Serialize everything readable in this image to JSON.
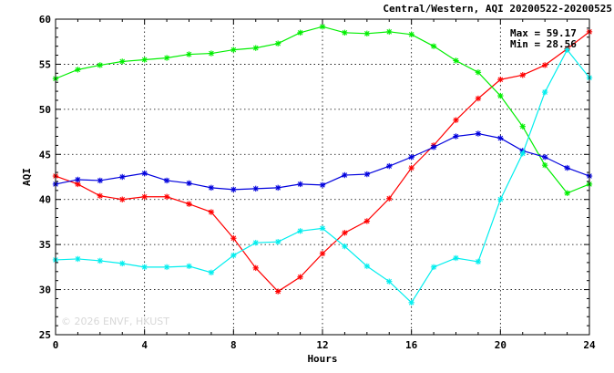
{
  "chart_data": {
    "type": "line",
    "title": "Central/Western, AQI 20200522-20200525",
    "xlabel": "Hours",
    "ylabel": "AQI",
    "xlim": [
      0,
      24
    ],
    "ylim": [
      25,
      60
    ],
    "xticks": [
      0,
      4,
      8,
      12,
      16,
      20,
      24
    ],
    "yticks": [
      25,
      30,
      35,
      40,
      45,
      50,
      55,
      60
    ],
    "grid": true,
    "stats": {
      "max": "Max = 59.17",
      "min": "Min = 28.56"
    },
    "watermark": "© 2026  ENVF, HKUST",
    "x": [
      0,
      1,
      2,
      3,
      4,
      5,
      6,
      7,
      8,
      9,
      10,
      11,
      12,
      13,
      14,
      15,
      16,
      17,
      18,
      19,
      20,
      21,
      22,
      23,
      24
    ],
    "series": [
      {
        "color": "#ff0000",
        "values": [
          42.6,
          41.7,
          40.4,
          40.0,
          40.3,
          40.3,
          39.5,
          38.6,
          35.7,
          32.4,
          29.8,
          31.4,
          34.0,
          36.3,
          37.6,
          40.1,
          43.5,
          46.0,
          48.8,
          51.2,
          53.3,
          53.8,
          54.9,
          56.7,
          58.6
        ]
      },
      {
        "color": "#00ee00",
        "values": [
          53.4,
          54.4,
          54.9,
          55.3,
          55.5,
          55.7,
          56.1,
          56.2,
          56.6,
          56.8,
          57.3,
          58.5,
          59.17,
          58.5,
          58.4,
          58.6,
          58.3,
          57.0,
          55.4,
          54.1,
          51.5,
          48.1,
          43.8,
          40.7,
          41.7
        ]
      },
      {
        "color": "#0000dd",
        "values": [
          41.7,
          42.2,
          42.1,
          42.5,
          42.9,
          42.1,
          41.8,
          41.3,
          41.1,
          41.2,
          41.3,
          41.7,
          41.6,
          42.7,
          42.8,
          43.7,
          44.7,
          45.8,
          47.0,
          47.3,
          46.8,
          45.4,
          44.7,
          43.5,
          42.6
        ]
      },
      {
        "color": "#00eeee",
        "values": [
          33.3,
          33.4,
          33.2,
          32.9,
          32.5,
          32.5,
          32.6,
          31.9,
          33.8,
          35.2,
          35.3,
          36.5,
          36.8,
          34.8,
          32.6,
          30.9,
          28.56,
          32.5,
          33.5,
          33.1,
          40.0,
          45.1,
          51.9,
          56.6,
          53.5
        ]
      }
    ]
  }
}
